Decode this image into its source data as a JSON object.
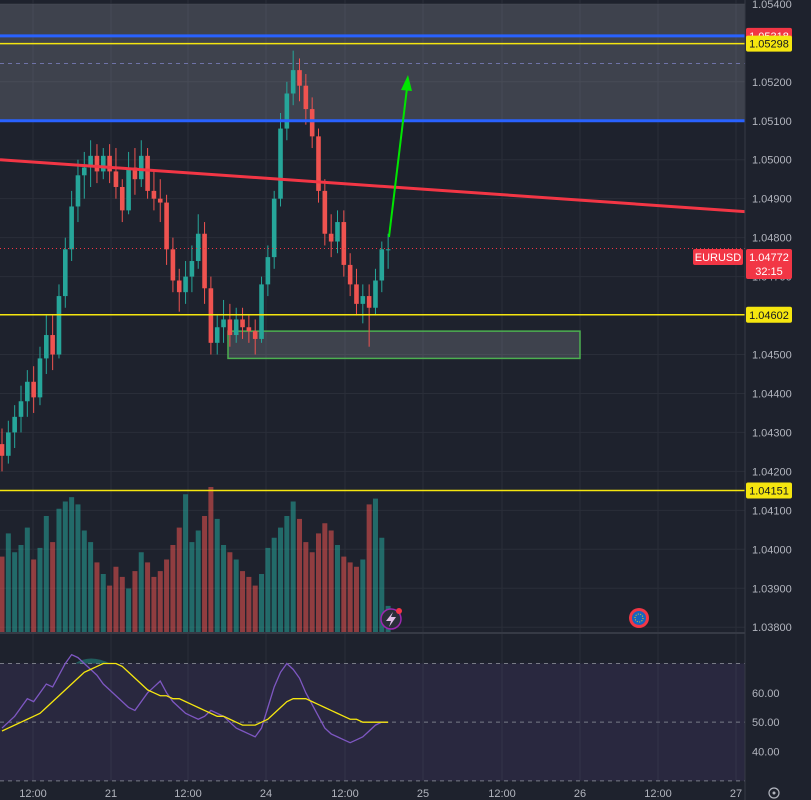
{
  "chart_data": {
    "type": "candlestick",
    "symbol": "EURUSD",
    "last_price": "1.04772",
    "countdown": "32:15",
    "y_range": [
      1.0378,
      1.0541
    ],
    "price_ticks": [
      "1.05400",
      "1.05200",
      "1.05100",
      "1.05000",
      "1.04900",
      "1.04800",
      "1.04700",
      "1.04500",
      "1.04400",
      "1.04300",
      "1.04200",
      "1.04100",
      "1.04000",
      "1.03900",
      "1.03800"
    ],
    "time_ticks": [
      "12:00",
      "21",
      "12:00",
      "24",
      "12:00",
      "25",
      "12:00",
      "26",
      "12:00",
      "27"
    ],
    "levels": [
      {
        "price": 1.05318,
        "label": "1.05318",
        "style": "blue"
      },
      {
        "price": 1.05298,
        "label": "1.05298",
        "style": "yellow"
      },
      {
        "price": 1.051,
        "label": "",
        "style": "blue"
      },
      {
        "price": 1.04602,
        "label": "1.04602",
        "style": "yellow"
      },
      {
        "price": 1.04151,
        "label": "1.04151",
        "style": "yellow"
      }
    ],
    "resistance_zone": [
      1.051,
      1.054
    ],
    "support_zone": [
      1.0449,
      1.0456
    ],
    "trendline": [
      [
        0,
        1.05
      ],
      [
        811,
        1.04855
      ]
    ],
    "candles": [
      [
        1.0427,
        1.0431,
        1.042,
        1.0424
      ],
      [
        1.0424,
        1.0433,
        1.0422,
        1.043
      ],
      [
        1.043,
        1.0437,
        1.0426,
        1.0434
      ],
      [
        1.0434,
        1.0442,
        1.043,
        1.0438
      ],
      [
        1.0438,
        1.0446,
        1.0434,
        1.0443
      ],
      [
        1.0443,
        1.0447,
        1.0435,
        1.0439
      ],
      [
        1.0439,
        1.0452,
        1.0437,
        1.0449
      ],
      [
        1.0449,
        1.046,
        1.0445,
        1.0455
      ],
      [
        1.0455,
        1.046,
        1.0446,
        1.045
      ],
      [
        1.045,
        1.0468,
        1.0449,
        1.0465
      ],
      [
        1.0465,
        1.048,
        1.0462,
        1.0477
      ],
      [
        1.0477,
        1.0492,
        1.0474,
        1.0488
      ],
      [
        1.0488,
        1.05,
        1.0484,
        1.0496
      ],
      [
        1.0496,
        1.0502,
        1.049,
        1.0498
      ],
      [
        1.0498,
        1.0505,
        1.0493,
        1.0501
      ],
      [
        1.0501,
        1.0504,
        1.0494,
        1.0497
      ],
      [
        1.0497,
        1.0503,
        1.0495,
        1.0501
      ],
      [
        1.0501,
        1.0504,
        1.0494,
        1.0497
      ],
      [
        1.0497,
        1.0503,
        1.049,
        1.0493
      ],
      [
        1.0493,
        1.0495,
        1.0484,
        1.0487
      ],
      [
        1.0487,
        1.0502,
        1.0486,
        1.0498
      ],
      [
        1.0498,
        1.0503,
        1.0491,
        1.0495
      ],
      [
        1.0495,
        1.0505,
        1.0493,
        1.0501
      ],
      [
        1.0501,
        1.0503,
        1.049,
        1.0492
      ],
      [
        1.0492,
        1.0497,
        1.0487,
        1.049
      ],
      [
        1.049,
        1.0495,
        1.0484,
        1.0489
      ],
      [
        1.0489,
        1.0491,
        1.0473,
        1.0477
      ],
      [
        1.0477,
        1.048,
        1.0466,
        1.0469
      ],
      [
        1.0469,
        1.0472,
        1.0461,
        1.0466
      ],
      [
        1.0466,
        1.0474,
        1.0463,
        1.047
      ],
      [
        1.047,
        1.0478,
        1.0466,
        1.0474
      ],
      [
        1.0474,
        1.0486,
        1.0472,
        1.0481
      ],
      [
        1.0481,
        1.0484,
        1.0463,
        1.0467
      ],
      [
        1.0467,
        1.047,
        1.045,
        1.0453
      ],
      [
        1.0453,
        1.046,
        1.045,
        1.0457
      ],
      [
        1.0457,
        1.0464,
        1.0453,
        1.0459
      ],
      [
        1.0459,
        1.0463,
        1.0452,
        1.0455
      ],
      [
        1.0455,
        1.0462,
        1.0453,
        1.0459
      ],
      [
        1.0459,
        1.0462,
        1.0454,
        1.0457
      ],
      [
        1.0457,
        1.046,
        1.0453,
        1.0456
      ],
      [
        1.0456,
        1.0459,
        1.045,
        1.0454
      ],
      [
        1.0454,
        1.047,
        1.0453,
        1.0468
      ],
      [
        1.0468,
        1.0478,
        1.0465,
        1.0475
      ],
      [
        1.0475,
        1.0492,
        1.0472,
        1.049
      ],
      [
        1.049,
        1.0512,
        1.0488,
        1.0508
      ],
      [
        1.0508,
        1.052,
        1.0505,
        1.0517
      ],
      [
        1.0517,
        1.0528,
        1.0514,
        1.0523
      ],
      [
        1.0523,
        1.0526,
        1.0515,
        1.0519
      ],
      [
        1.0519,
        1.0522,
        1.0509,
        1.0513
      ],
      [
        1.0513,
        1.0516,
        1.0503,
        1.0506
      ],
      [
        1.0506,
        1.0508,
        1.0489,
        1.0492
      ],
      [
        1.0492,
        1.0495,
        1.0478,
        1.0481
      ],
      [
        1.0481,
        1.0486,
        1.0475,
        1.0479
      ],
      [
        1.0479,
        1.0487,
        1.0476,
        1.0484
      ],
      [
        1.0484,
        1.0487,
        1.047,
        1.0473
      ],
      [
        1.0473,
        1.0476,
        1.0465,
        1.0468
      ],
      [
        1.0468,
        1.0472,
        1.046,
        1.0463
      ],
      [
        1.0463,
        1.0468,
        1.0458,
        1.0465
      ],
      [
        1.0465,
        1.0468,
        1.0452,
        1.0462
      ],
      [
        1.0462,
        1.0472,
        1.046,
        1.0469
      ],
      [
        1.0469,
        1.0479,
        1.0466,
        1.0477
      ],
      [
        1.0477,
        1.0481,
        1.0472,
        1.0477
      ]
    ],
    "volume": [
      0.52,
      0.68,
      0.55,
      0.6,
      0.72,
      0.5,
      0.58,
      0.8,
      0.62,
      0.85,
      0.9,
      0.93,
      0.88,
      0.7,
      0.62,
      0.48,
      0.4,
      0.32,
      0.45,
      0.38,
      0.3,
      0.42,
      0.55,
      0.48,
      0.38,
      0.42,
      0.5,
      0.6,
      0.72,
      0.95,
      0.62,
      0.7,
      0.8,
      1.0,
      0.78,
      0.6,
      0.55,
      0.5,
      0.42,
      0.38,
      0.32,
      0.4,
      0.58,
      0.65,
      0.72,
      0.8,
      0.9,
      0.78,
      0.62,
      0.55,
      0.68,
      0.75,
      0.7,
      0.6,
      0.52,
      0.48,
      0.45,
      0.5,
      0.88,
      0.92,
      0.65,
      0.18
    ],
    "rsi_ticks": [
      "60.00",
      "50.00",
      "40.00"
    ],
    "rsi": [
      48,
      50,
      52,
      55,
      58,
      57,
      60,
      63,
      62,
      66,
      70,
      73,
      72,
      70,
      68,
      66,
      63,
      61,
      59,
      57,
      55,
      54,
      57,
      60,
      62,
      64,
      60,
      57,
      55,
      53,
      52,
      51,
      52,
      54,
      53,
      52,
      50,
      48,
      47,
      46,
      45,
      48,
      55,
      62,
      67,
      70,
      68,
      65,
      60,
      56,
      52,
      48,
      46,
      45,
      44,
      43,
      44,
      45,
      47,
      49,
      50,
      50
    ],
    "rsi_ma": [
      47,
      48,
      49,
      50,
      51,
      52,
      53,
      55,
      57,
      59,
      61,
      63,
      65,
      67,
      68,
      69,
      70,
      70,
      70,
      69,
      67,
      65,
      63,
      61,
      60,
      59,
      59,
      58,
      58,
      57,
      56,
      55,
      54,
      53,
      52,
      52,
      51,
      50,
      49,
      49,
      49,
      50,
      51,
      53,
      55,
      57,
      58,
      58,
      58,
      57,
      56,
      55,
      54,
      53,
      52,
      51,
      51,
      50,
      50,
      50,
      50,
      50
    ]
  }
}
